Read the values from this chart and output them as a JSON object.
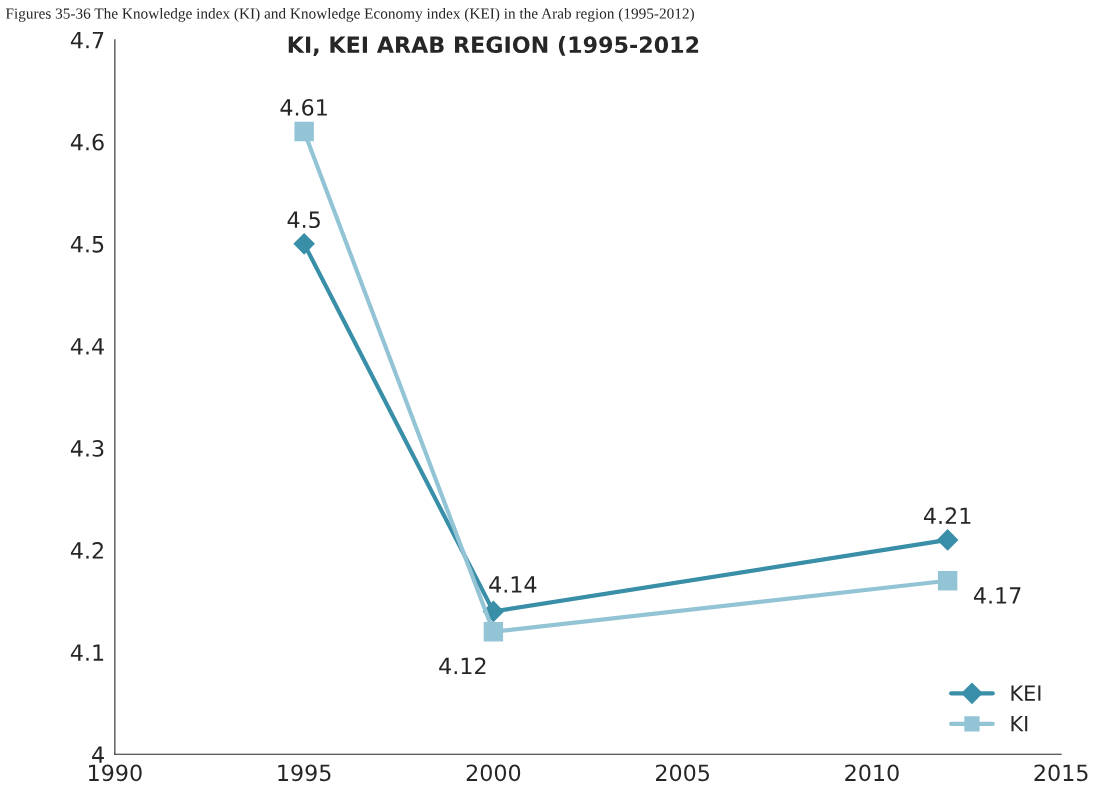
{
  "chart_data": {
    "type": "line",
    "title": "KI, KEI ARAB REGION (1995-2012",
    "annotations": [
      "Figures 35-36 The Knowledge index (KI) and Knowledge Economy index (KEI) in the Arab region (1995-2012)"
    ],
    "x": [
      1995,
      2000,
      2012
    ],
    "series": [
      {
        "name": "KEI",
        "color": "#3a8fa8",
        "values": [
          4.5,
          4.14,
          4.21
        ],
        "marker": "diamond"
      },
      {
        "name": "KI",
        "color": "#93c4d6",
        "values": [
          4.61,
          4.12,
          4.17
        ],
        "marker": "square"
      }
    ],
    "xlim": [
      1990,
      2015
    ],
    "xticks": [
      1990,
      1995,
      2000,
      2005,
      2010,
      2015
    ],
    "ylim": [
      4,
      4.7
    ],
    "yticks": [
      4,
      4.1,
      4.2,
      4.3,
      4.4,
      4.5,
      4.6,
      4.7
    ],
    "data_labels": true,
    "grid": false,
    "legend": "bottom right"
  }
}
